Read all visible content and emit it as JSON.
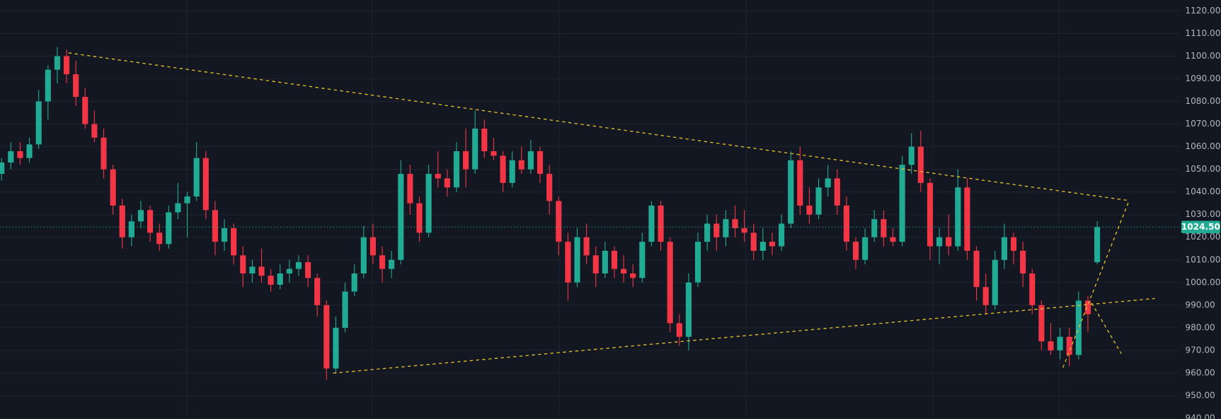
{
  "chart_data": {
    "type": "candlestick",
    "up_color": "#22ab94",
    "down_color": "#f23645",
    "grid": true,
    "ylim": [
      939.7,
      1124.8
    ],
    "yticks": [
      {
        "value": 940,
        "label": "940.00"
      },
      {
        "value": 950,
        "label": "950.00"
      },
      {
        "value": 960,
        "label": "960.00"
      },
      {
        "value": 970,
        "label": "970.00"
      },
      {
        "value": 980,
        "label": "980.00"
      },
      {
        "value": 990,
        "label": "990.00"
      },
      {
        "value": 1000,
        "label": "1000.00"
      },
      {
        "value": 1010,
        "label": "1010.00"
      },
      {
        "value": 1020,
        "label": "1020.00"
      },
      {
        "value": 1030,
        "label": "1030.00"
      },
      {
        "value": 1040,
        "label": "1040.00"
      },
      {
        "value": 1050,
        "label": "1050.00"
      },
      {
        "value": 1060,
        "label": "1060.00"
      },
      {
        "value": 1070,
        "label": "1070.00"
      },
      {
        "value": 1080,
        "label": "1080.00"
      },
      {
        "value": 1090,
        "label": "1090.00"
      },
      {
        "value": 1100,
        "label": "1100.00"
      },
      {
        "value": 1110,
        "label": "1110.00"
      },
      {
        "value": 1120,
        "label": "1120.00"
      }
    ],
    "current_price": {
      "value": 1024.5,
      "label": "1024.50"
    },
    "ohlc": [
      [
        1048,
        1055,
        1045,
        1053
      ],
      [
        1053,
        1062,
        1050,
        1058
      ],
      [
        1058,
        1062,
        1052,
        1055
      ],
      [
        1055,
        1064,
        1053,
        1061
      ],
      [
        1061,
        1085,
        1059,
        1080
      ],
      [
        1080,
        1096,
        1072,
        1094
      ],
      [
        1094,
        1104,
        1088,
        1100
      ],
      [
        1100,
        1103,
        1088,
        1092
      ],
      [
        1092,
        1098,
        1078,
        1082
      ],
      [
        1082,
        1086,
        1068,
        1070
      ],
      [
        1070,
        1076,
        1062,
        1064
      ],
      [
        1064,
        1068,
        1046,
        1050
      ],
      [
        1050,
        1052,
        1030,
        1034
      ],
      [
        1034,
        1037,
        1015,
        1020
      ],
      [
        1020,
        1030,
        1016,
        1027
      ],
      [
        1027,
        1036,
        1024,
        1032
      ],
      [
        1032,
        1034,
        1018,
        1022
      ],
      [
        1022,
        1026,
        1014,
        1017
      ],
      [
        1017,
        1034,
        1015,
        1031
      ],
      [
        1031,
        1044,
        1028,
        1035
      ],
      [
        1035,
        1040,
        1020,
        1038
      ],
      [
        1038,
        1062,
        1036,
        1055
      ],
      [
        1055,
        1058,
        1028,
        1032
      ],
      [
        1032,
        1036,
        1012,
        1018
      ],
      [
        1018,
        1028,
        1014,
        1024
      ],
      [
        1024,
        1026,
        1008,
        1012
      ],
      [
        1012,
        1016,
        998,
        1004
      ],
      [
        1004,
        1010,
        1000,
        1007
      ],
      [
        1007,
        1015,
        1000,
        1003
      ],
      [
        1003,
        1006,
        996,
        999
      ],
      [
        999,
        1008,
        997,
        1004
      ],
      [
        1004,
        1010,
        1000,
        1006
      ],
      [
        1006,
        1012,
        1003,
        1009
      ],
      [
        1009,
        1012,
        998,
        1002
      ],
      [
        1002,
        1004,
        985,
        990
      ],
      [
        990,
        992,
        957,
        962
      ],
      [
        962,
        985,
        960,
        980
      ],
      [
        980,
        1000,
        978,
        996
      ],
      [
        996,
        1008,
        994,
        1004
      ],
      [
        1004,
        1025,
        1002,
        1020
      ],
      [
        1020,
        1026,
        1008,
        1012
      ],
      [
        1012,
        1016,
        1000,
        1006
      ],
      [
        1006,
        1014,
        1002,
        1010
      ],
      [
        1010,
        1054,
        1008,
        1048
      ],
      [
        1048,
        1052,
        1030,
        1035
      ],
      [
        1035,
        1038,
        1018,
        1022
      ],
      [
        1022,
        1052,
        1020,
        1048
      ],
      [
        1048,
        1058,
        1042,
        1046
      ],
      [
        1046,
        1050,
        1038,
        1042
      ],
      [
        1042,
        1062,
        1040,
        1058
      ],
      [
        1058,
        1068,
        1042,
        1050
      ],
      [
        1050,
        1076,
        1048,
        1068
      ],
      [
        1068,
        1072,
        1055,
        1058
      ],
      [
        1058,
        1064,
        1054,
        1056
      ],
      [
        1056,
        1058,
        1040,
        1044
      ],
      [
        1044,
        1058,
        1042,
        1054
      ],
      [
        1054,
        1060,
        1048,
        1050
      ],
      [
        1050,
        1063,
        1048,
        1058
      ],
      [
        1058,
        1060,
        1044,
        1048
      ],
      [
        1048,
        1052,
        1030,
        1036
      ],
      [
        1036,
        1038,
        1012,
        1018
      ],
      [
        1018,
        1022,
        992,
        1000
      ],
      [
        1000,
        1024,
        998,
        1020
      ],
      [
        1020,
        1026,
        1008,
        1012
      ],
      [
        1012,
        1016,
        998,
        1004
      ],
      [
        1004,
        1018,
        1002,
        1014
      ],
      [
        1014,
        1016,
        1002,
        1006
      ],
      [
        1006,
        1012,
        1000,
        1004
      ],
      [
        1004,
        1008,
        998,
        1002
      ],
      [
        1002,
        1022,
        1000,
        1018
      ],
      [
        1018,
        1036,
        1016,
        1034
      ],
      [
        1034,
        1036,
        1014,
        1018
      ],
      [
        1018,
        1020,
        978,
        982
      ],
      [
        982,
        986,
        972,
        976
      ],
      [
        976,
        1004,
        970,
        1000
      ],
      [
        1000,
        1022,
        998,
        1018
      ],
      [
        1018,
        1030,
        1014,
        1026
      ],
      [
        1026,
        1030,
        1014,
        1020
      ],
      [
        1020,
        1032,
        1016,
        1028
      ],
      [
        1028,
        1034,
        1020,
        1024
      ],
      [
        1024,
        1032,
        1018,
        1022
      ],
      [
        1022,
        1026,
        1010,
        1014
      ],
      [
        1014,
        1024,
        1010,
        1018
      ],
      [
        1018,
        1022,
        1012,
        1016
      ],
      [
        1016,
        1030,
        1014,
        1026
      ],
      [
        1026,
        1058,
        1024,
        1054
      ],
      [
        1054,
        1060,
        1030,
        1034
      ],
      [
        1034,
        1042,
        1026,
        1030
      ],
      [
        1030,
        1046,
        1028,
        1042
      ],
      [
        1042,
        1052,
        1038,
        1046
      ],
      [
        1046,
        1050,
        1030,
        1034
      ],
      [
        1034,
        1038,
        1014,
        1018
      ],
      [
        1018,
        1020,
        1006,
        1010
      ],
      [
        1010,
        1024,
        1008,
        1020
      ],
      [
        1020,
        1032,
        1018,
        1028
      ],
      [
        1028,
        1032,
        1016,
        1020
      ],
      [
        1020,
        1024,
        1016,
        1018
      ],
      [
        1018,
        1056,
        1016,
        1052
      ],
      [
        1052,
        1066,
        1048,
        1060
      ],
      [
        1060,
        1067,
        1040,
        1044
      ],
      [
        1044,
        1046,
        1010,
        1016
      ],
      [
        1016,
        1024,
        1008,
        1020
      ],
      [
        1020,
        1030,
        1012,
        1016
      ],
      [
        1016,
        1050,
        1014,
        1042
      ],
      [
        1042,
        1046,
        1010,
        1014
      ],
      [
        1014,
        1016,
        992,
        998
      ],
      [
        998,
        1004,
        986,
        990
      ],
      [
        990,
        1014,
        988,
        1010
      ],
      [
        1010,
        1026,
        1006,
        1020
      ],
      [
        1020,
        1022,
        1008,
        1014
      ],
      [
        1014,
        1018,
        998,
        1004
      ],
      [
        1004,
        1006,
        986,
        990
      ],
      [
        990,
        992,
        970,
        974
      ],
      [
        974,
        982,
        968,
        970
      ],
      [
        970,
        980,
        966,
        976
      ],
      [
        976,
        980,
        963,
        968
      ],
      [
        968,
        996,
        966,
        992
      ],
      [
        992,
        994,
        978,
        986
      ],
      [
        1009,
        1027,
        1008,
        1024.5
      ]
    ]
  }
}
